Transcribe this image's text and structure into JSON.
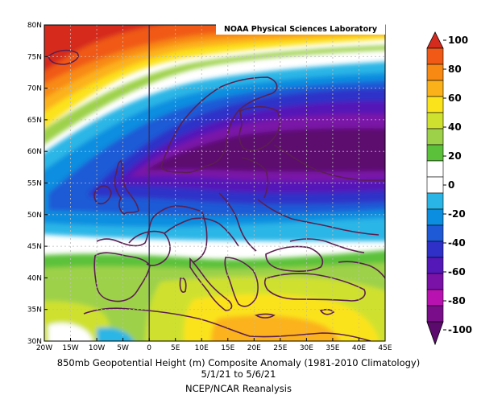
{
  "credit": "NOAA Physical Sciences Laboratory",
  "caption": {
    "line1": "850mb Geopotential Height (m) Composite Anomaly (1981-2010 Climatology)",
    "line2": "5/1/21   to 5/6/21",
    "line3": "NCEP/NCAR Reanalysis"
  },
  "map": {
    "lat_range": [
      30,
      80
    ],
    "lon_range": [
      -20,
      45
    ],
    "x_ticks": [
      "20W",
      "15W",
      "10W",
      "5W",
      "0",
      "5E",
      "10E",
      "15E",
      "20E",
      "25E",
      "30E",
      "35E",
      "40E",
      "45E"
    ],
    "y_ticks": [
      "30N",
      "35N",
      "40N",
      "45N",
      "50N",
      "55N",
      "60N",
      "65N",
      "70N",
      "75N",
      "80N"
    ]
  },
  "colorbar": {
    "labels": [
      "100",
      "80",
      "60",
      "40",
      "20",
      "0",
      "-20",
      "-40",
      "-60",
      "-80",
      "-100"
    ],
    "colors": [
      "#d52b1e",
      "#f05a16",
      "#f88a14",
      "#fbb21a",
      "#fbe31c",
      "#cfe12f",
      "#9dd14a",
      "#5cc13a",
      "#ffffff",
      "#ffffff",
      "#29b6e6",
      "#0c8ee0",
      "#1f5ad6",
      "#2f30c8",
      "#5418b8",
      "#7a12a8",
      "#b812b0",
      "#7a0e8a",
      "#5c0a6e"
    ]
  }
}
